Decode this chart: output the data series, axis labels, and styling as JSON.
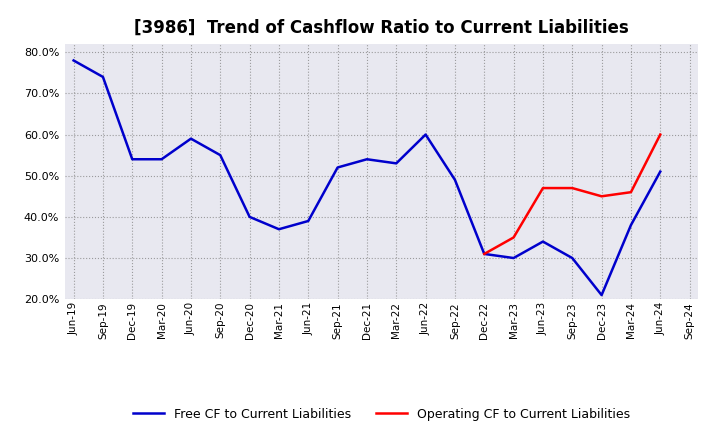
{
  "title": "[3986]  Trend of Cashflow Ratio to Current Liabilities",
  "ylim": [
    0.2,
    0.82
  ],
  "yticks": [
    0.2,
    0.3,
    0.4,
    0.5,
    0.6,
    0.7,
    0.8
  ],
  "x_labels": [
    "Jun-19",
    "Sep-19",
    "Dec-19",
    "Mar-20",
    "Jun-20",
    "Sep-20",
    "Dec-20",
    "Mar-21",
    "Jun-21",
    "Sep-21",
    "Dec-21",
    "Mar-22",
    "Jun-22",
    "Sep-22",
    "Dec-22",
    "Mar-23",
    "Jun-23",
    "Sep-23",
    "Dec-23",
    "Mar-24",
    "Jun-24",
    "Sep-24"
  ],
  "operating_cf": [
    null,
    null,
    null,
    null,
    null,
    null,
    null,
    null,
    null,
    null,
    null,
    null,
    null,
    null,
    0.31,
    0.35,
    0.47,
    0.47,
    0.45,
    0.46,
    0.6,
    null
  ],
  "free_cf": [
    0.78,
    0.74,
    0.54,
    0.54,
    0.59,
    0.55,
    0.4,
    0.37,
    0.39,
    0.52,
    0.54,
    0.53,
    0.6,
    0.49,
    0.31,
    0.3,
    0.34,
    0.3,
    0.21,
    0.38,
    0.51,
    null
  ],
  "operating_color": "#ff0000",
  "free_color": "#0000cc",
  "background_color": "#ffffff",
  "plot_bg_color": "#e8e8f0",
  "grid_color": "#aaaaaa",
  "title_fontsize": 12,
  "legend_labels": [
    "Operating CF to Current Liabilities",
    "Free CF to Current Liabilities"
  ]
}
